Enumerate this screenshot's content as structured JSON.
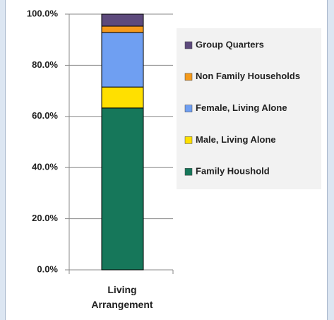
{
  "chart_data": {
    "type": "stacked_bar",
    "categories": [
      "Living Arrangement"
    ],
    "series": [
      {
        "name": "Family Houshold",
        "color": "#16775a",
        "values": [
          63.3
        ]
      },
      {
        "name": "Male, Living Alone",
        "color": "#ffe000",
        "values": [
          8.2
        ]
      },
      {
        "name": "Female, Living Alone",
        "color": "#6f9ff2",
        "values": [
          21.3
        ]
      },
      {
        "name": "Non Family Households",
        "color": "#f59a1b",
        "values": [
          2.5
        ]
      },
      {
        "name": "Group Quarters",
        "color": "#5d4a7c",
        "values": [
          4.7
        ]
      }
    ],
    "ylim": [
      0,
      100
    ],
    "yticks": [
      {
        "value": 0,
        "label": "0.0%"
      },
      {
        "value": 20,
        "label": "20.0%"
      },
      {
        "value": 40,
        "label": "40.0%"
      },
      {
        "value": 60,
        "label": "60.0%"
      },
      {
        "value": 80,
        "label": "80.0%"
      },
      {
        "value": 100,
        "label": "100.0%"
      }
    ],
    "grid": true,
    "legend": "right"
  }
}
